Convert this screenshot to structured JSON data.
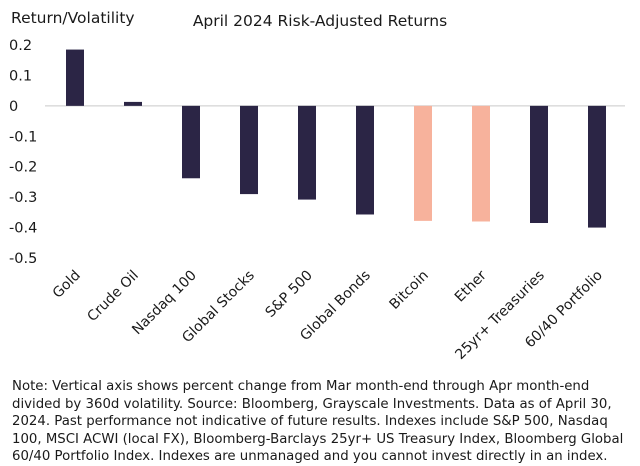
{
  "chart_data": {
    "type": "bar",
    "title": "April 2024 Risk-Adjusted Returns",
    "ylabel": "Return/Volatility",
    "xlabel": "",
    "ylim": [
      -0.5,
      0.2
    ],
    "yticks": [
      0.2,
      0.1,
      0,
      -0.1,
      -0.2,
      -0.3,
      -0.4,
      -0.5
    ],
    "ytick_labels": [
      "0.2",
      "0.1",
      "0",
      "-0.1",
      "-0.2",
      "-0.3",
      "-0.4",
      "-0.5"
    ],
    "categories": [
      "Gold",
      "Crude Oil",
      "Nasdaq 100",
      "Global Stocks",
      "S&P 500",
      "Global Bonds",
      "Bitcoin",
      "Ether",
      "25yr+ Treasuries",
      "60/40 Portfolio"
    ],
    "values": [
      0.185,
      0.013,
      -0.238,
      -0.29,
      -0.308,
      -0.357,
      -0.378,
      -0.38,
      -0.385,
      -0.4
    ],
    "colors": [
      "#2b2545",
      "#2b2545",
      "#2b2545",
      "#2b2545",
      "#2b2545",
      "#2b2545",
      "#f7b29c",
      "#f7b29c",
      "#2b2545",
      "#2b2545"
    ],
    "grid": false,
    "legend": "none"
  },
  "note": "Note: Vertical axis shows percent change from Mar month-end through Apr month-end divided by 360d volatility. Source: Bloomberg, Grayscale Investments. Data as of April 30, 2024. Past performance not indicative of future results. Indexes include S&P 500, Nasdaq 100, MSCI ACWI (local FX), Bloomberg-Barclays 25yr+ US Treasury Index, Bloomberg Global 60/40 Portfolio Index. Indexes are unmanaged and you cannot invest directly in an index."
}
